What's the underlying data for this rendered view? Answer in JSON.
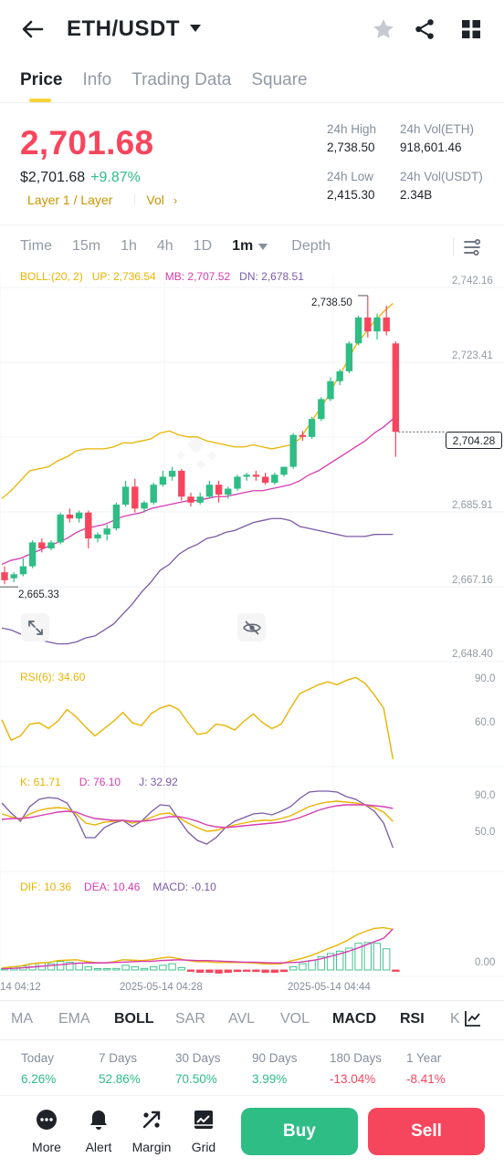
{
  "header": {
    "pair": "ETH/USDT"
  },
  "tabs": [
    "Price",
    "Info",
    "Trading Data",
    "Square"
  ],
  "price": {
    "last": "2,701.68",
    "usd": "$2,701.68",
    "change": "+9.87%",
    "tag1": "Layer 1 / Layer",
    "tag2": "Vol"
  },
  "stats": {
    "high_label": "24h High",
    "high_value": "2,738.50",
    "vol_eth_label": "24h Vol(ETH)",
    "vol_eth_value": "918,601.46",
    "low_label": "24h Low",
    "low_value": "2,415.30",
    "vol_usdt_label": "24h Vol(USDT)",
    "vol_usdt_value": "2.34B"
  },
  "timeframes": [
    "Time",
    "15m",
    "1h",
    "4h",
    "1D",
    "1m",
    "Depth"
  ],
  "active_timeframe": "1m",
  "boll": {
    "label": "BOLL:(20, 2)",
    "up": "UP: 2,736.54",
    "mb": "MB: 2,707.52",
    "dn": "DN: 2,678.51"
  },
  "price_axis": [
    "2,742.16",
    "2,723.41",
    "2,685.91",
    "2,667.16",
    "2,648.40"
  ],
  "current_price_tag": "2,704.28",
  "high_marker": "2,738.50",
  "low_marker": "2,665.33",
  "rsi": {
    "label": "RSI(6): 34.60",
    "axis": [
      "90.0",
      "60.0"
    ]
  },
  "kdj": {
    "k": "K: 61.71",
    "d": "D: 76.10",
    "j": "J: 32.92",
    "axis": [
      "90.0",
      "50.0"
    ]
  },
  "macd": {
    "dif": "DIF: 10.36",
    "dea": "DEA: 10.46",
    "macd": "MACD: -0.10",
    "axis": "0.00"
  },
  "time_axis": [
    "14 04:12",
    "2025-05-14 04:28",
    "2025-05-14 04:44"
  ],
  "indicator_tabs": [
    "MA",
    "EMA",
    "BOLL",
    "SAR",
    "AVL",
    "VOL",
    "MACD",
    "RSI",
    "K"
  ],
  "active_indicators": [
    "BOLL",
    "MACD",
    "RSI"
  ],
  "performance": [
    {
      "label": "Today",
      "value": "6.26%",
      "dir": "up"
    },
    {
      "label": "7 Days",
      "value": "52.86%",
      "dir": "up"
    },
    {
      "label": "30 Days",
      "value": "70.50%",
      "dir": "up"
    },
    {
      "label": "90 Days",
      "value": "3.99%",
      "dir": "up"
    },
    {
      "label": "180 Days",
      "value": "-13.04%",
      "dir": "down"
    },
    {
      "label": "1 Year",
      "value": "-8.41%",
      "dir": "down"
    }
  ],
  "bottom_nav": [
    "More",
    "Alert",
    "Margin",
    "Grid"
  ],
  "actions": {
    "buy": "Buy",
    "sell": "Sell"
  },
  "colors": {
    "up": "#2ebd85",
    "down": "#f6465d",
    "boll_up": "#e8b400",
    "boll_mb": "#d63bb0",
    "boll_dn": "#7b5aa6",
    "accent": "#fcd535"
  },
  "chart_data": {
    "type": "candlestick",
    "candles_ohlc": [
      [
        2669.0,
        2670.5,
        2666.0,
        2667.0
      ],
      [
        2667.5,
        2669.0,
        2666.5,
        2668.5
      ],
      [
        2668.5,
        2672.5,
        2668.0,
        2670.5
      ],
      [
        2670.5,
        2677.0,
        2670.0,
        2676.5
      ],
      [
        2676.5,
        2677.5,
        2674.0,
        2675.0
      ],
      [
        2675.0,
        2677.0,
        2674.5,
        2676.5
      ],
      [
        2676.5,
        2684.0,
        2676.0,
        2683.5
      ],
      [
        2683.5,
        2685.0,
        2681.5,
        2682.5
      ],
      [
        2682.5,
        2684.5,
        2681.5,
        2684.0
      ],
      [
        2684.0,
        2684.5,
        2675.0,
        2677.5
      ],
      [
        2677.5,
        2679.0,
        2676.5,
        2678.5
      ],
      [
        2678.5,
        2681.0,
        2677.0,
        2680.0
      ],
      [
        2680.0,
        2686.5,
        2679.5,
        2686.0
      ],
      [
        2686.0,
        2692.0,
        2685.5,
        2690.5
      ],
      [
        2690.5,
        2692.5,
        2684.0,
        2685.0
      ],
      [
        2685.0,
        2687.0,
        2684.0,
        2686.5
      ],
      [
        2686.5,
        2691.5,
        2686.0,
        2691.0
      ],
      [
        2691.0,
        2694.5,
        2690.5,
        2693.0
      ],
      [
        2693.0,
        2695.5,
        2692.0,
        2694.5
      ],
      [
        2694.5,
        2695.0,
        2687.0,
        2688.0
      ],
      [
        2688.0,
        2689.0,
        2685.5,
        2686.5
      ],
      [
        2686.5,
        2689.0,
        2686.0,
        2688.0
      ],
      [
        2688.0,
        2692.0,
        2687.5,
        2691.0
      ],
      [
        2691.0,
        2692.0,
        2686.5,
        2688.5
      ],
      [
        2688.5,
        2690.5,
        2687.5,
        2690.0
      ],
      [
        2690.0,
        2693.5,
        2689.5,
        2693.0
      ],
      [
        2693.0,
        2694.0,
        2692.0,
        2693.5
      ],
      [
        2693.5,
        2694.5,
        2692.0,
        2693.0
      ],
      [
        2693.0,
        2694.0,
        2691.0,
        2691.5
      ],
      [
        2691.5,
        2694.0,
        2691.0,
        2693.5
      ],
      [
        2693.5,
        2695.5,
        2693.0,
        2695.5
      ],
      [
        2695.5,
        2704.0,
        2695.0,
        2703.5
      ],
      [
        2703.5,
        2704.5,
        2702.0,
        2703.0
      ],
      [
        2703.0,
        2708.0,
        2702.5,
        2707.5
      ],
      [
        2707.5,
        2713.0,
        2707.0,
        2712.5
      ],
      [
        2712.5,
        2718.0,
        2712.0,
        2717.0
      ],
      [
        2717.0,
        2720.0,
        2716.0,
        2719.5
      ],
      [
        2719.5,
        2727.0,
        2719.0,
        2726.5
      ],
      [
        2726.5,
        2733.5,
        2726.0,
        2733.0
      ],
      [
        2733.0,
        2738.5,
        2728.0,
        2729.5
      ],
      [
        2729.5,
        2734.0,
        2727.5,
        2733.0
      ],
      [
        2733.0,
        2736.0,
        2728.5,
        2729.5
      ],
      [
        2726.5,
        2727.0,
        2698.0,
        2704.28
      ]
    ],
    "boll_up": [
      2687.5,
      2689.5,
      2692.0,
      2694.5,
      2695.0,
      2695.5,
      2697.0,
      2698.0,
      2699.5,
      2700.0,
      2700.0,
      2700.0,
      2700.5,
      2701.5,
      2701.5,
      2702.0,
      2702.5,
      2704.0,
      2704.5,
      2703.5,
      2703.0,
      2703.0,
      2702.0,
      2701.5,
      2701.0,
      2700.5,
      2700.5,
      2701.0,
      2700.5,
      2700.0,
      2700.5,
      2701.0,
      2702.5,
      2706.0,
      2709.5,
      2713.0,
      2717.5,
      2721.5,
      2726.0,
      2729.0,
      2732.0,
      2734.5,
      2736.54
    ],
    "boll_mb": [
      2671.0,
      2672.0,
      2672.5,
      2673.5,
      2674.5,
      2675.5,
      2676.5,
      2677.5,
      2679.0,
      2680.0,
      2680.5,
      2681.0,
      2682.0,
      2683.0,
      2683.5,
      2684.0,
      2685.0,
      2685.5,
      2686.0,
      2686.5,
      2687.0,
      2687.0,
      2687.5,
      2688.0,
      2688.0,
      2688.5,
      2689.0,
      2689.5,
      2689.5,
      2690.0,
      2690.5,
      2691.0,
      2692.0,
      2693.5,
      2694.5,
      2696.0,
      2697.5,
      2699.0,
      2700.5,
      2702.0,
      2704.0,
      2705.5,
      2707.52
    ],
    "boll_dn": [
      2655.0,
      2654.5,
      2653.5,
      2652.5,
      2652.0,
      2651.5,
      2651.0,
      2651.0,
      2651.5,
      2652.5,
      2653.0,
      2654.5,
      2656.0,
      2658.5,
      2661.0,
      2664.0,
      2666.5,
      2669.5,
      2671.0,
      2673.5,
      2675.0,
      2676.0,
      2677.5,
      2678.0,
      2679.0,
      2679.5,
      2680.5,
      2681.5,
      2682.0,
      2682.5,
      2682.5,
      2682.0,
      2680.5,
      2680.0,
      2679.5,
      2679.0,
      2678.5,
      2678.0,
      2678.0,
      2678.0,
      2678.5,
      2678.51,
      2678.51
    ],
    "rsi": [
      62,
      48,
      51,
      59,
      60,
      56,
      61,
      69,
      64,
      57,
      51,
      56,
      61,
      67,
      60,
      58,
      66,
      70,
      72,
      69,
      60,
      52,
      53,
      59,
      58,
      55,
      61,
      66,
      60,
      56,
      59,
      70,
      80,
      83,
      86,
      88,
      86,
      89,
      91,
      87,
      79,
      70,
      35
    ],
    "kdj_k": [
      70,
      67,
      64,
      70,
      74,
      76,
      77,
      76,
      70,
      60,
      58,
      61,
      62,
      63,
      60,
      62,
      66,
      70,
      71,
      66,
      60,
      55,
      51,
      52,
      55,
      58,
      60,
      62,
      63,
      63,
      65,
      68,
      73,
      78,
      81,
      83,
      84,
      83,
      82,
      80,
      77,
      72,
      61.71
    ],
    "kdj_d": [
      64,
      65,
      65,
      66,
      68,
      70,
      72,
      73,
      72,
      68,
      65,
      64,
      63,
      63,
      62,
      62,
      63,
      65,
      67,
      67,
      65,
      62,
      58,
      56,
      55,
      56,
      57,
      58,
      59,
      60,
      61,
      63,
      66,
      70,
      74,
      77,
      79,
      80,
      80,
      80,
      79,
      78,
      76.1
    ],
    "kdj_j": [
      82,
      71,
      62,
      78,
      86,
      88,
      87,
      82,
      66,
      44,
      44,
      55,
      60,
      63,
      56,
      62,
      72,
      80,
      79,
      64,
      50,
      41,
      37,
      44,
      55,
      62,
      66,
      70,
      71,
      69,
      73,
      78,
      87,
      94,
      95,
      95,
      94,
      89,
      86,
      80,
      73,
      60,
      32.92
    ],
    "macd_dif": [
      0.5,
      0.8,
      1.0,
      1.5,
      1.8,
      1.9,
      2.4,
      2.5,
      2.6,
      2.2,
      1.9,
      1.8,
      2.1,
      2.6,
      2.5,
      2.4,
      2.6,
      3.0,
      3.3,
      2.9,
      2.4,
      2.1,
      2.1,
      1.9,
      1.9,
      1.9,
      1.9,
      1.8,
      1.6,
      1.5,
      1.6,
      2.3,
      2.8,
      3.5,
      4.4,
      5.4,
      6.3,
      7.4,
      8.8,
      9.8,
      10.6,
      10.8,
      10.36
    ],
    "macd_dea": [
      0.3,
      0.4,
      0.5,
      0.7,
      0.9,
      1.1,
      1.3,
      1.5,
      1.7,
      1.8,
      1.8,
      1.8,
      1.9,
      2.0,
      2.1,
      2.2,
      2.2,
      2.4,
      2.5,
      2.6,
      2.5,
      2.4,
      2.4,
      2.3,
      2.2,
      2.1,
      2.0,
      2.0,
      1.9,
      1.8,
      1.8,
      1.9,
      2.0,
      2.3,
      2.7,
      3.3,
      3.9,
      4.6,
      5.4,
      6.3,
      7.2,
      8.1,
      10.46
    ],
    "ylim": [
      2648.4,
      2742.16
    ]
  }
}
